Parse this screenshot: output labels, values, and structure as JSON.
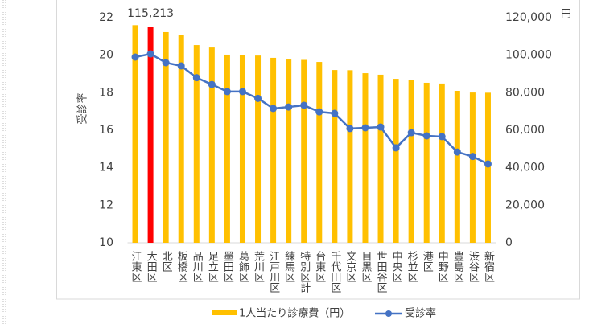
{
  "chart_data": {
    "type": "bar-line",
    "y_label": "受診率",
    "y2_unit": "円",
    "categories": [
      "江東区",
      "大田区",
      "北区",
      "板橋区",
      "品川区",
      "足立区",
      "墨田区",
      "葛飾区",
      "荒川区",
      "江戸川区",
      "練馬区",
      "特別区計",
      "台東区",
      "千代田区",
      "文京区",
      "目黒区",
      "世田谷区",
      "中央区",
      "杉並区",
      "港区",
      "中野区",
      "豊島区",
      "渋谷区",
      "新宿区"
    ],
    "series": [
      {
        "name": "1人当たり診療費（円）",
        "type": "bar",
        "axis": "y2",
        "color": "#ffc000",
        "colors": [
          "#ffc000",
          "#ff0000",
          "#ffc000",
          "#ffc000",
          "#ffc000",
          "#ffc000",
          "#ffc000",
          "#ffc000",
          "#ffc000",
          "#ffc000",
          "#ffc000",
          "#ffc000",
          "#ffc000",
          "#ffc000",
          "#ffc000",
          "#ffc000",
          "#ffc000",
          "#ffc000",
          "#ffc000",
          "#ffc000",
          "#ffc000",
          "#ffc000",
          "#ffc000",
          "#ffc000"
        ],
        "values": [
          116000,
          115213,
          112300,
          110600,
          105400,
          104100,
          100300,
          99900,
          99800,
          98600,
          97700,
          97500,
          96400,
          92100,
          92000,
          90400,
          89600,
          87400,
          86600,
          85300,
          84900,
          81000,
          80100,
          80000
        ],
        "value_labels": [
          null,
          "115,213",
          null,
          null,
          null,
          null,
          null,
          null,
          null,
          null,
          null,
          null,
          null,
          null,
          null,
          null,
          null,
          null,
          null,
          null,
          null,
          null,
          null,
          null
        ]
      },
      {
        "name": "受診率",
        "type": "line",
        "axis": "y",
        "color": "#4472c4",
        "values": [
          19.9,
          20.07,
          19.6,
          19.43,
          18.8,
          18.44,
          18.06,
          18.06,
          17.7,
          17.16,
          17.24,
          17.33,
          16.98,
          16.9,
          16.09,
          16.13,
          16.17,
          15.06,
          15.87,
          15.7,
          15.66,
          14.84,
          14.6,
          14.2
        ]
      }
    ],
    "ylim": [
      10,
      22
    ],
    "yticks": [
      10,
      12,
      14,
      16,
      18,
      20,
      22
    ],
    "y2lim": [
      0,
      120000
    ],
    "y2ticks": [
      0,
      {
        "value": 20000,
        "label": "20,000"
      },
      {
        "value": 40000,
        "label": "40,000"
      },
      {
        "value": 60000,
        "label": "60,000"
      },
      {
        "value": 80000,
        "label": "80,000"
      },
      {
        "value": 100000,
        "label": "100,000"
      },
      {
        "value": 120000,
        "label": "120,000"
      }
    ],
    "grid": false
  }
}
